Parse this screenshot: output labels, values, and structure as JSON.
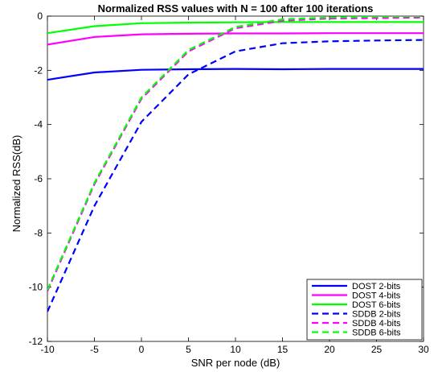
{
  "chart_data": {
    "type": "line",
    "title": "Normalized RSS values with N = 100 after 100 iterations",
    "xlabel": "SNR per node (dB)",
    "ylabel": "Normalized RSS(dB)",
    "xlim": [
      -10,
      30
    ],
    "ylim": [
      -12,
      0
    ],
    "xticks": [
      -10,
      -5,
      0,
      5,
      10,
      15,
      20,
      25,
      30
    ],
    "yticks": [
      -12,
      -10,
      -8,
      -6,
      -4,
      -2,
      0
    ],
    "grid": false,
    "legend_position": "bottom-right",
    "series": [
      {
        "name": "DOST 2-bits",
        "color": "#0000ff",
        "style": "solid",
        "x": [
          -10,
          -5,
          0,
          5,
          10,
          15,
          20,
          25,
          30
        ],
        "y": [
          -2.35,
          -2.08,
          -1.98,
          -1.96,
          -1.95,
          -1.96,
          -1.95,
          -1.95,
          -1.95
        ]
      },
      {
        "name": "DOST 4-bits",
        "color": "#ff00ff",
        "style": "solid",
        "x": [
          -10,
          -5,
          0,
          5,
          10,
          15,
          20,
          25,
          30
        ],
        "y": [
          -1.05,
          -0.77,
          -0.67,
          -0.65,
          -0.64,
          -0.64,
          -0.63,
          -0.63,
          -0.63
        ]
      },
      {
        "name": "DOST 6-bits",
        "color": "#00ff00",
        "style": "solid",
        "x": [
          -10,
          -5,
          0,
          5,
          10,
          15,
          20,
          25,
          30
        ],
        "y": [
          -0.63,
          -0.37,
          -0.26,
          -0.24,
          -0.23,
          -0.22,
          -0.22,
          -0.22,
          -0.22
        ]
      },
      {
        "name": "SDDB 2-bits",
        "color": "#0000ff",
        "style": "dashed",
        "x": [
          -10,
          -5,
          0,
          5,
          10,
          15,
          20,
          25,
          30
        ],
        "y": [
          -10.9,
          -7.0,
          -3.9,
          -2.15,
          -1.3,
          -1.0,
          -0.93,
          -0.9,
          -0.88
        ]
      },
      {
        "name": "SDDB 4-bits",
        "color": "#ff00ff",
        "style": "dashed",
        "x": [
          -10,
          -5,
          0,
          5,
          10,
          15,
          20,
          25,
          30
        ],
        "y": [
          -10.15,
          -6.2,
          -3.05,
          -1.3,
          -0.45,
          -0.17,
          -0.09,
          -0.07,
          -0.05
        ]
      },
      {
        "name": "SDDB 6-bits",
        "color": "#00ff00",
        "style": "dashed",
        "x": [
          -10,
          -5,
          0,
          5,
          10,
          15,
          20,
          25,
          30
        ],
        "y": [
          -10.1,
          -6.15,
          -3.0,
          -1.25,
          -0.4,
          -0.12,
          -0.05,
          -0.02,
          0.0
        ]
      }
    ]
  }
}
